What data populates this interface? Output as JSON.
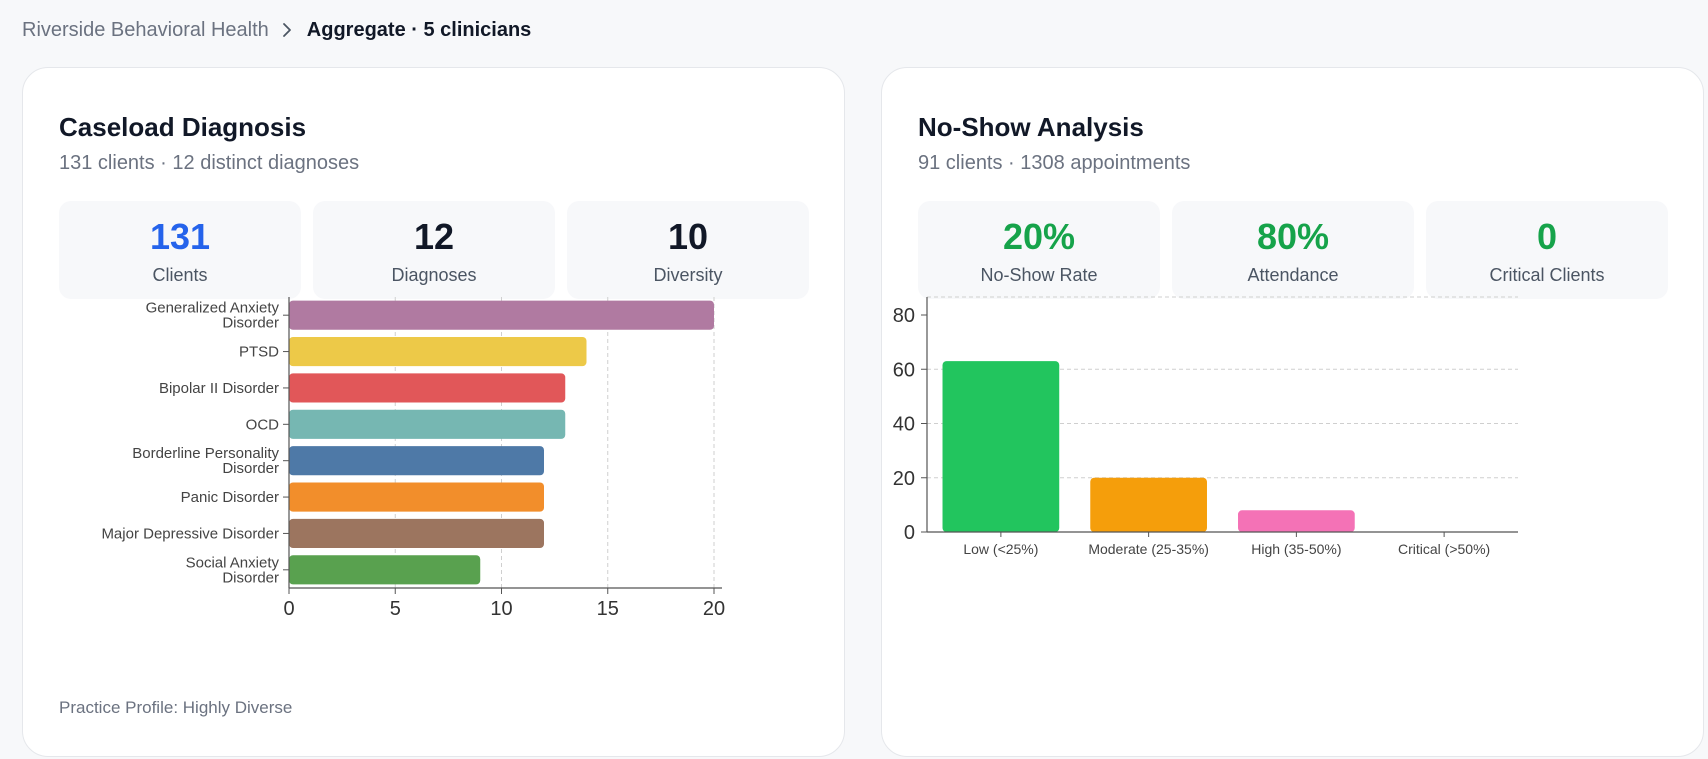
{
  "breadcrumb": {
    "root": "Riverside Behavioral Health",
    "current": "Aggregate · 5 clinicians",
    "separator_icon": "chevron-right-icon"
  },
  "diagnosis_card": {
    "title": "Caseload Diagnosis",
    "subtitle": "131 clients · 12 distinct diagnoses",
    "stats": [
      {
        "value": "131",
        "label": "Clients",
        "color": "#2563eb"
      },
      {
        "value": "12",
        "label": "Diagnoses",
        "color": "#111827"
      },
      {
        "value": "10",
        "label": "Diversity",
        "color": "#111827"
      }
    ],
    "footer": "Practice Profile: Highly Diverse"
  },
  "noshow_card": {
    "title": "No-Show Analysis",
    "subtitle": "91 clients · 1308 appointments",
    "stats": [
      {
        "value": "20%",
        "label": "No-Show Rate",
        "color": "#16a34a"
      },
      {
        "value": "80%",
        "label": "Attendance",
        "color": "#16a34a"
      },
      {
        "value": "0",
        "label": "Critical Clients",
        "color": "#16a34a"
      }
    ]
  },
  "chart_data": [
    {
      "type": "bar",
      "orientation": "horizontal",
      "categories": [
        [
          "Generalized Anxiety",
          "Disorder"
        ],
        [
          "PTSD"
        ],
        [
          "Bipolar II Disorder"
        ],
        [
          "OCD"
        ],
        [
          "Borderline Personality",
          "Disorder"
        ],
        [
          "Panic Disorder"
        ],
        [
          "Major Depressive Disorder"
        ],
        [
          "Social Anxiety",
          "Disorder"
        ]
      ],
      "values": [
        20,
        14,
        13,
        13,
        12,
        12,
        12,
        9
      ],
      "colors": [
        "#b07aa1",
        "#edc948",
        "#e15759",
        "#76b7b2",
        "#4e79a7",
        "#f28e2b",
        "#9c755f",
        "#59a14f"
      ],
      "xlim": [
        0,
        20
      ],
      "xticks": [
        "0",
        "5",
        "10",
        "15",
        "20"
      ],
      "grid": true
    },
    {
      "type": "bar",
      "orientation": "vertical",
      "categories": [
        "Low (<25%)",
        "Moderate (25-35%)",
        "High (35-50%)",
        "Critical (>50%)"
      ],
      "values": [
        63,
        20,
        8,
        0
      ],
      "colors": [
        "#22c55e",
        "#f59e0b",
        "#f472b6",
        "#ef4444"
      ],
      "ylim": [
        0,
        80
      ],
      "yticks": [
        "0",
        "20",
        "40",
        "60",
        "80"
      ],
      "grid": true
    }
  ]
}
